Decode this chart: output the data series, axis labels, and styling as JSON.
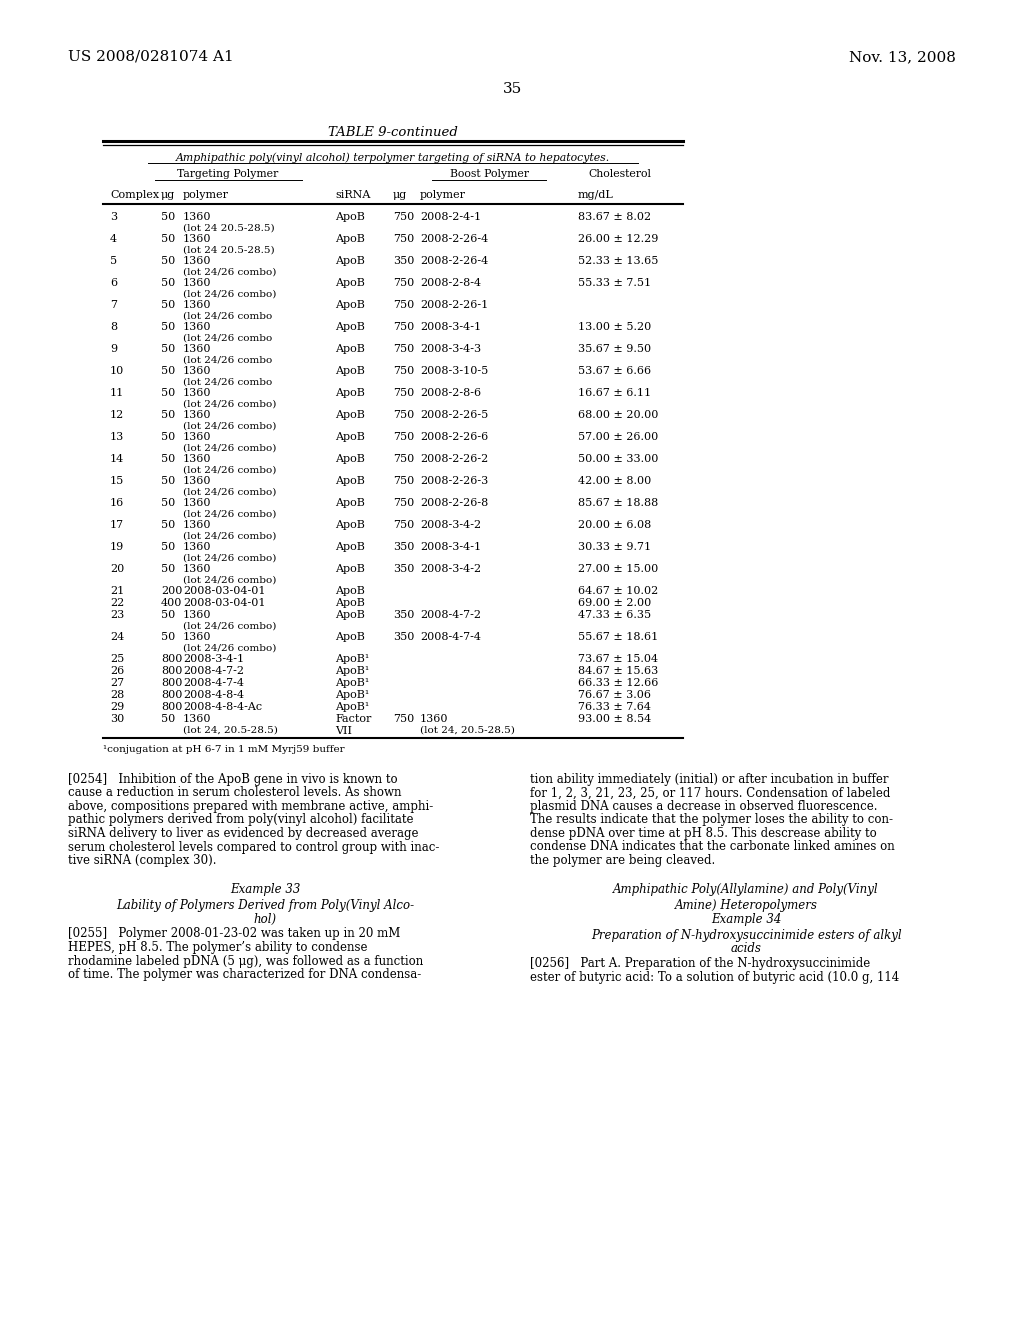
{
  "page_number": "35",
  "patent_number": "US 2008/0281074 A1",
  "date": "Nov. 13, 2008",
  "table_title": "TABLE 9-continued",
  "table_subtitle": "Amphipathic poly(vinyl alcohol) terpolymer targeting of siRNA to hepatocytes.",
  "footnote": "¹conjugation at pH 6-7 in 1 mM Myrj59 buffer",
  "table_rows": [
    {
      "complex": "3",
      "ug1": "50",
      "poly1": "1360",
      "poly1b": "(lot 24 20.5-28.5)",
      "sirna": "ApoB",
      "ug2": "750",
      "poly2": "2008-2-4-1",
      "poly2b": "",
      "chol": "83.67 ± 8.02"
    },
    {
      "complex": "4",
      "ug1": "50",
      "poly1": "1360",
      "poly1b": "(lot 24 20.5-28.5)",
      "sirna": "ApoB",
      "ug2": "750",
      "poly2": "2008-2-26-4",
      "poly2b": "",
      "chol": "26.00 ± 12.29"
    },
    {
      "complex": "5",
      "ug1": "50",
      "poly1": "1360",
      "poly1b": "(lot 24/26 combo)",
      "sirna": "ApoB",
      "ug2": "350",
      "poly2": "2008-2-26-4",
      "poly2b": "",
      "chol": "52.33 ± 13.65"
    },
    {
      "complex": "6",
      "ug1": "50",
      "poly1": "1360",
      "poly1b": "(lot 24/26 combo)",
      "sirna": "ApoB",
      "ug2": "750",
      "poly2": "2008-2-8-4",
      "poly2b": "",
      "chol": "55.33 ± 7.51"
    },
    {
      "complex": "7",
      "ug1": "50",
      "poly1": "1360",
      "poly1b": "(lot 24/26 combo",
      "sirna": "ApoB",
      "ug2": "750",
      "poly2": "2008-2-26-1",
      "poly2b": "",
      "chol": ""
    },
    {
      "complex": "8",
      "ug1": "50",
      "poly1": "1360",
      "poly1b": "(lot 24/26 combo",
      "sirna": "ApoB",
      "ug2": "750",
      "poly2": "2008-3-4-1",
      "poly2b": "",
      "chol": "13.00 ± 5.20"
    },
    {
      "complex": "9",
      "ug1": "50",
      "poly1": "1360",
      "poly1b": "(lot 24/26 combo",
      "sirna": "ApoB",
      "ug2": "750",
      "poly2": "2008-3-4-3",
      "poly2b": "",
      "chol": "35.67 ± 9.50"
    },
    {
      "complex": "10",
      "ug1": "50",
      "poly1": "1360",
      "poly1b": "(lot 24/26 combo",
      "sirna": "ApoB",
      "ug2": "750",
      "poly2": "2008-3-10-5",
      "poly2b": "",
      "chol": "53.67 ± 6.66"
    },
    {
      "complex": "11",
      "ug1": "50",
      "poly1": "1360",
      "poly1b": "(lot 24/26 combo)",
      "sirna": "ApoB",
      "ug2": "750",
      "poly2": "2008-2-8-6",
      "poly2b": "",
      "chol": "16.67 ± 6.11"
    },
    {
      "complex": "12",
      "ug1": "50",
      "poly1": "1360",
      "poly1b": "(lot 24/26 combo)",
      "sirna": "ApoB",
      "ug2": "750",
      "poly2": "2008-2-26-5",
      "poly2b": "",
      "chol": "68.00 ± 20.00"
    },
    {
      "complex": "13",
      "ug1": "50",
      "poly1": "1360",
      "poly1b": "(lot 24/26 combo)",
      "sirna": "ApoB",
      "ug2": "750",
      "poly2": "2008-2-26-6",
      "poly2b": "",
      "chol": "57.00 ± 26.00"
    },
    {
      "complex": "14",
      "ug1": "50",
      "poly1": "1360",
      "poly1b": "(lot 24/26 combo)",
      "sirna": "ApoB",
      "ug2": "750",
      "poly2": "2008-2-26-2",
      "poly2b": "",
      "chol": "50.00 ± 33.00"
    },
    {
      "complex": "15",
      "ug1": "50",
      "poly1": "1360",
      "poly1b": "(lot 24/26 combo)",
      "sirna": "ApoB",
      "ug2": "750",
      "poly2": "2008-2-26-3",
      "poly2b": "",
      "chol": "42.00 ± 8.00"
    },
    {
      "complex": "16",
      "ug1": "50",
      "poly1": "1360",
      "poly1b": "(lot 24/26 combo)",
      "sirna": "ApoB",
      "ug2": "750",
      "poly2": "2008-2-26-8",
      "poly2b": "",
      "chol": "85.67 ± 18.88"
    },
    {
      "complex": "17",
      "ug1": "50",
      "poly1": "1360",
      "poly1b": "(lot 24/26 combo)",
      "sirna": "ApoB",
      "ug2": "750",
      "poly2": "2008-3-4-2",
      "poly2b": "",
      "chol": "20.00 ± 6.08"
    },
    {
      "complex": "19",
      "ug1": "50",
      "poly1": "1360",
      "poly1b": "(lot 24/26 combo)",
      "sirna": "ApoB",
      "ug2": "350",
      "poly2": "2008-3-4-1",
      "poly2b": "",
      "chol": "30.33 ± 9.71"
    },
    {
      "complex": "20",
      "ug1": "50",
      "poly1": "1360",
      "poly1b": "(lot 24/26 combo)",
      "sirna": "ApoB",
      "ug2": "350",
      "poly2": "2008-3-4-2",
      "poly2b": "",
      "chol": "27.00 ± 15.00"
    },
    {
      "complex": "21",
      "ug1": "200",
      "poly1": "2008-03-04-01",
      "poly1b": "",
      "sirna": "ApoB",
      "ug2": "",
      "poly2": "",
      "poly2b": "",
      "chol": "64.67 ± 10.02"
    },
    {
      "complex": "22",
      "ug1": "400",
      "poly1": "2008-03-04-01",
      "poly1b": "",
      "sirna": "ApoB",
      "ug2": "",
      "poly2": "",
      "poly2b": "",
      "chol": "69.00 ± 2.00"
    },
    {
      "complex": "23",
      "ug1": "50",
      "poly1": "1360",
      "poly1b": "(lot 24/26 combo)",
      "sirna": "ApoB",
      "ug2": "350",
      "poly2": "2008-4-7-2",
      "poly2b": "",
      "chol": "47.33 ± 6.35"
    },
    {
      "complex": "24",
      "ug1": "50",
      "poly1": "1360",
      "poly1b": "(lot 24/26 combo)",
      "sirna": "ApoB",
      "ug2": "350",
      "poly2": "2008-4-7-4",
      "poly2b": "",
      "chol": "55.67 ± 18.61"
    },
    {
      "complex": "25",
      "ug1": "800",
      "poly1": "2008-3-4-1",
      "poly1b": "",
      "sirna": "ApoB¹",
      "ug2": "",
      "poly2": "",
      "poly2b": "",
      "chol": "73.67 ± 15.04"
    },
    {
      "complex": "26",
      "ug1": "800",
      "poly1": "2008-4-7-2",
      "poly1b": "",
      "sirna": "ApoB¹",
      "ug2": "",
      "poly2": "",
      "poly2b": "",
      "chol": "84.67 ± 15.63"
    },
    {
      "complex": "27",
      "ug1": "800",
      "poly1": "2008-4-7-4",
      "poly1b": "",
      "sirna": "ApoB¹",
      "ug2": "",
      "poly2": "",
      "poly2b": "",
      "chol": "66.33 ± 12.66"
    },
    {
      "complex": "28",
      "ug1": "800",
      "poly1": "2008-4-8-4",
      "poly1b": "",
      "sirna": "ApoB¹",
      "ug2": "",
      "poly2": "",
      "poly2b": "",
      "chol": "76.67 ± 3.06"
    },
    {
      "complex": "29",
      "ug1": "800",
      "poly1": "2008-4-8-4-Ac",
      "poly1b": "",
      "sirna": "ApoB¹",
      "ug2": "",
      "poly2": "",
      "poly2b": "",
      "chol": "76.33 ± 7.64"
    },
    {
      "complex": "30",
      "ug1": "50",
      "poly1": "1360",
      "poly1b": "(lot 24, 20.5-28.5)",
      "sirna": "Factor",
      "ug2": "750",
      "poly2": "1360",
      "poly2b": "(lot 24, 20.5-28.5)",
      "chol": "93.00 ± 8.54",
      "sirna2": "VII"
    }
  ],
  "left_lines_0254": [
    "[0254]   Inhibition of the ApoB gene in vivo is known to",
    "cause a reduction in serum cholesterol levels. As shown",
    "above, compositions prepared with membrane active, amphi-",
    "pathic polymers derived from poly(vinyl alcohol) facilitate",
    "siRNA delivery to liver as evidenced by decreased average",
    "serum cholesterol levels compared to control group with inac-",
    "tive siRNA (complex 30)."
  ],
  "right_lines_0254": [
    "tion ability immediately (initial) or after incubation in buffer",
    "for 1, 2, 3, 21, 23, 25, or 117 hours. Condensation of labeled",
    "plasmid DNA causes a decrease in observed fluorescence.",
    "The results indicate that the polymer loses the ability to con-",
    "dense pDNA over time at pH 8.5. This descrease ability to",
    "condense DNA indicates that the carbonate linked amines on",
    "the polymer are being cleaved."
  ],
  "ex33_title": "Example 33",
  "ex33_sub1": "Lability of Polymers Derived from Poly(Vinyl Alco-",
  "ex33_sub2": "hol)",
  "left_lines_0255": [
    "[0255]   Polymer 2008-01-23-02 was taken up in 20 mM",
    "HEPES, pH 8.5. The polymer’s ability to condense",
    "rhodamine labeled pDNA (5 μg), was followed as a function",
    "of time. The polymer was characterized for DNA condensa-"
  ],
  "right_title1": "Amphipathic Poly(Allylamine) and Poly(Vinyl",
  "right_title2": "Amine) Heteropolymers",
  "ex34_title": "Example 34",
  "ex34_sub1": "Preparation of N-hydroxysuccinimide esters of alkyl",
  "ex34_sub2": "acids",
  "right_lines_0256": [
    "[0256]   Part A. Preparation of the N-hydroxysuccinimide",
    "ester of butyric acid: To a solution of butyric acid (10.0 g, 114"
  ]
}
